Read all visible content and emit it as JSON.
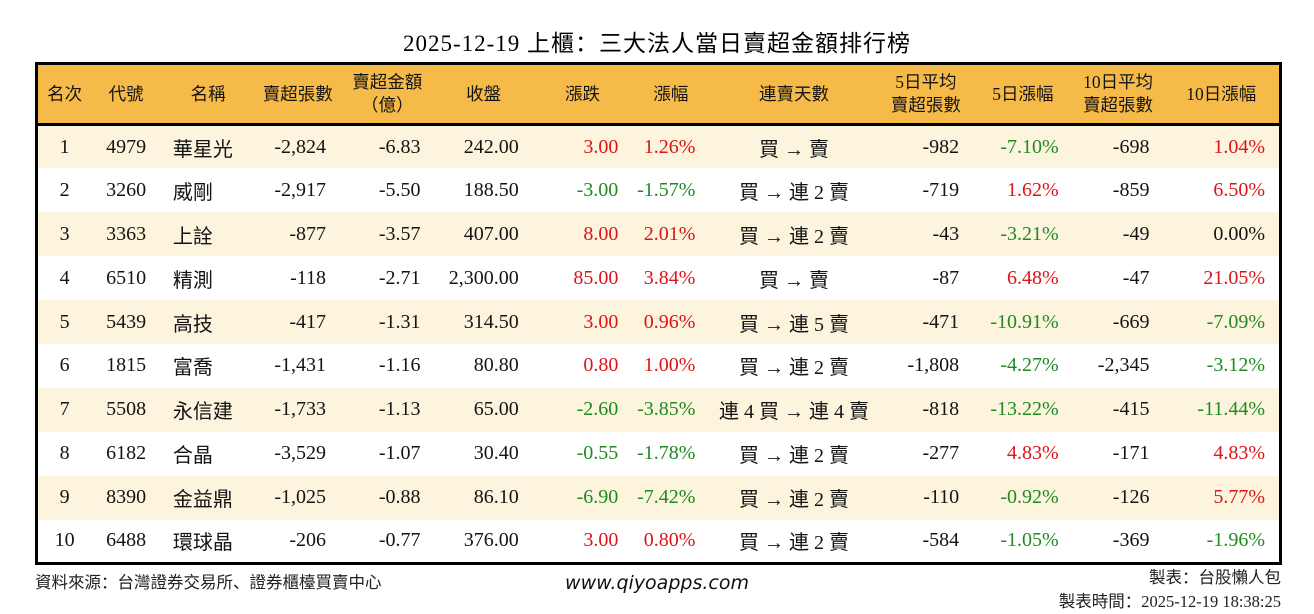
{
  "title": "2025-12-19 上櫃：三大法人當日賣超金額排行榜",
  "colors": {
    "up": "#dd1418",
    "down": "#1e8b22",
    "header_bg": "#f6ba49",
    "row_alt_bg": "#fcf4dd",
    "border": "#000000"
  },
  "table": {
    "columns": [
      {
        "key": "rank",
        "label": "名次"
      },
      {
        "key": "code",
        "label": "代號"
      },
      {
        "key": "name",
        "label": "名稱"
      },
      {
        "key": "sell-volume",
        "label": "賣超張數"
      },
      {
        "key": "sell-amount",
        "label": "賣超金額\n（億）"
      },
      {
        "key": "close",
        "label": "收盤"
      },
      {
        "key": "change",
        "label": "漲跌"
      },
      {
        "key": "change-pct",
        "label": "漲幅"
      },
      {
        "key": "sell-streak",
        "label": "連賣天數"
      },
      {
        "key": "avg5-volume",
        "label": "5日平均\n賣超張數"
      },
      {
        "key": "pct5",
        "label": "5日漲幅"
      },
      {
        "key": "avg10-volume",
        "label": "10日平均\n賣超張數"
      },
      {
        "key": "pct10",
        "label": "10日漲幅"
      }
    ],
    "rows": [
      [
        "1",
        "4979",
        "華星光",
        "-2,824",
        "-6.83",
        "242.00",
        {
          "t": "3.00",
          "c": "r"
        },
        {
          "t": "1.26%",
          "c": "r"
        },
        "買 → 賣",
        "-982",
        {
          "t": "-7.10%",
          "c": "g"
        },
        "-698",
        {
          "t": "1.04%",
          "c": "r"
        }
      ],
      [
        "2",
        "3260",
        "威剛",
        "-2,917",
        "-5.50",
        "188.50",
        {
          "t": "-3.00",
          "c": "g"
        },
        {
          "t": "-1.57%",
          "c": "g"
        },
        "買 → 連 2 賣",
        "-719",
        {
          "t": "1.62%",
          "c": "r"
        },
        "-859",
        {
          "t": "6.50%",
          "c": "r"
        }
      ],
      [
        "3",
        "3363",
        "上詮",
        "-877",
        "-3.57",
        "407.00",
        {
          "t": "8.00",
          "c": "r"
        },
        {
          "t": "2.01%",
          "c": "r"
        },
        "買 → 連 2 賣",
        "-43",
        {
          "t": "-3.21%",
          "c": "g"
        },
        "-49",
        {
          "t": "0.00%",
          "c": "k"
        }
      ],
      [
        "4",
        "6510",
        "精測",
        "-118",
        "-2.71",
        "2,300.00",
        {
          "t": "85.00",
          "c": "r"
        },
        {
          "t": "3.84%",
          "c": "r"
        },
        "買 → 賣",
        "-87",
        {
          "t": "6.48%",
          "c": "r"
        },
        "-47",
        {
          "t": "21.05%",
          "c": "r"
        }
      ],
      [
        "5",
        "5439",
        "高技",
        "-417",
        "-1.31",
        "314.50",
        {
          "t": "3.00",
          "c": "r"
        },
        {
          "t": "0.96%",
          "c": "r"
        },
        "買 → 連 5 賣",
        "-471",
        {
          "t": "-10.91%",
          "c": "g"
        },
        "-669",
        {
          "t": "-7.09%",
          "c": "g"
        }
      ],
      [
        "6",
        "1815",
        "富喬",
        "-1,431",
        "-1.16",
        "80.80",
        {
          "t": "0.80",
          "c": "r"
        },
        {
          "t": "1.00%",
          "c": "r"
        },
        "買 → 連 2 賣",
        "-1,808",
        {
          "t": "-4.27%",
          "c": "g"
        },
        "-2,345",
        {
          "t": "-3.12%",
          "c": "g"
        }
      ],
      [
        "7",
        "5508",
        "永信建",
        "-1,733",
        "-1.13",
        "65.00",
        {
          "t": "-2.60",
          "c": "g"
        },
        {
          "t": "-3.85%",
          "c": "g"
        },
        "連 4 買 → 連 4 賣",
        "-818",
        {
          "t": "-13.22%",
          "c": "g"
        },
        "-415",
        {
          "t": "-11.44%",
          "c": "g"
        }
      ],
      [
        "8",
        "6182",
        "合晶",
        "-3,529",
        "-1.07",
        "30.40",
        {
          "t": "-0.55",
          "c": "g"
        },
        {
          "t": "-1.78%",
          "c": "g"
        },
        "買 → 連 2 賣",
        "-277",
        {
          "t": "4.83%",
          "c": "r"
        },
        "-171",
        {
          "t": "4.83%",
          "c": "r"
        }
      ],
      [
        "9",
        "8390",
        "金益鼎",
        "-1,025",
        "-0.88",
        "86.10",
        {
          "t": "-6.90",
          "c": "g"
        },
        {
          "t": "-7.42%",
          "c": "g"
        },
        "買 → 連 2 賣",
        "-110",
        {
          "t": "-0.92%",
          "c": "g"
        },
        "-126",
        {
          "t": "5.77%",
          "c": "r"
        }
      ],
      [
        "10",
        "6488",
        "環球晶",
        "-206",
        "-0.77",
        "376.00",
        {
          "t": "3.00",
          "c": "r"
        },
        {
          "t": "0.80%",
          "c": "r"
        },
        "買 → 連 2 賣",
        "-584",
        {
          "t": "-1.05%",
          "c": "g"
        },
        "-369",
        {
          "t": "-1.96%",
          "c": "g"
        }
      ]
    ]
  },
  "footer": {
    "source": "資料來源：台灣證券交易所、證券櫃檯買賣中心",
    "website": "www.qiyoapps.com",
    "author": "製表：台股懶人包",
    "timestamp": "製表時間：2025-12-19 18:38:25"
  }
}
